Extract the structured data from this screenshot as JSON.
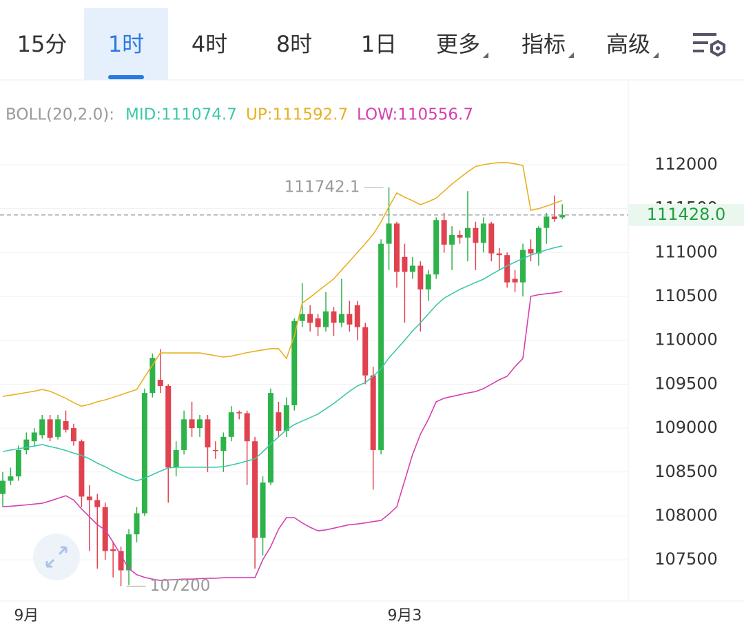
{
  "tabs": {
    "items": [
      "15分",
      "1时",
      "4时",
      "8时",
      "1日",
      "更多",
      "指标",
      "高级"
    ],
    "active": 1
  },
  "chart_data": {
    "type": "candlestick",
    "indicator": "BOLL(20,2.0):",
    "up_color": "#2db34a",
    "down_color": "#e0424f",
    "ylim": [
      107030,
      112950
    ],
    "yticks": [
      107500,
      108000,
      108500,
      109000,
      109500,
      110000,
      110500,
      111000,
      111500,
      112000
    ],
    "grid": true,
    "categories": [
      null,
      null,
      null,
      "9月",
      null,
      null,
      null,
      null,
      null,
      null,
      null,
      null,
      null,
      null,
      null,
      null,
      null,
      null,
      null,
      null,
      null,
      null,
      null,
      null,
      null,
      null,
      null,
      null,
      null,
      null,
      null,
      null,
      null,
      null,
      null,
      null,
      null,
      null,
      null,
      null,
      null,
      null,
      null,
      null,
      null,
      null,
      null,
      null,
      null,
      null,
      null,
      "9月3",
      null,
      null,
      null,
      null,
      null,
      null,
      null,
      null,
      null,
      null,
      null,
      null,
      null,
      null,
      null,
      null,
      null,
      null,
      null,
      null
    ],
    "ohlc": [
      [
        108250,
        108500,
        108100,
        108400
      ],
      [
        108400,
        108550,
        108350,
        108450
      ],
      [
        108450,
        108800,
        108400,
        108750
      ],
      [
        108750,
        108950,
        108700,
        108870
      ],
      [
        108850,
        109000,
        108800,
        108950
      ],
      [
        108920,
        109150,
        108880,
        109100
      ],
      [
        109100,
        109150,
        108850,
        108890
      ],
      [
        108900,
        109150,
        108870,
        109100
      ],
      [
        109080,
        109200,
        108950,
        108980
      ],
      [
        109000,
        109050,
        108800,
        108850
      ],
      [
        108850,
        108870,
        108100,
        108220
      ],
      [
        108220,
        108350,
        107600,
        108180
      ],
      [
        108180,
        108250,
        107400,
        108100
      ],
      [
        108100,
        108150,
        107500,
        107600
      ],
      [
        107620,
        107700,
        107300,
        107600
      ],
      [
        107600,
        107650,
        107200,
        107380
      ],
      [
        107380,
        107850,
        107211.5,
        107790
      ],
      [
        107790,
        108100,
        107700,
        108030
      ],
      [
        108030,
        109450,
        108000,
        109400
      ],
      [
        109400,
        109850,
        109350,
        109800
      ],
      [
        109550,
        109900,
        109400,
        109480
      ],
      [
        109480,
        109500,
        108150,
        108550
      ],
      [
        108550,
        108850,
        108450,
        108750
      ],
      [
        108750,
        109200,
        108700,
        109100
      ],
      [
        109100,
        109300,
        108900,
        109000
      ],
      [
        109000,
        109150,
        108900,
        109100
      ],
      [
        109100,
        109150,
        108500,
        108780
      ],
      [
        108750,
        108850,
        108650,
        108740
      ],
      [
        108740,
        108950,
        108500,
        108900
      ],
      [
        108900,
        109250,
        108850,
        109180
      ],
      [
        109180,
        109200,
        109100,
        109170
      ],
      [
        109170,
        109200,
        108350,
        108850
      ],
      [
        108850,
        108900,
        107400,
        107750
      ],
      [
        107750,
        108450,
        107550,
        108380
      ],
      [
        108380,
        109450,
        108350,
        109400
      ],
      [
        109180,
        109300,
        108900,
        108970
      ],
      [
        108970,
        109350,
        108900,
        109260
      ],
      [
        109260,
        110250,
        109200,
        110220
      ],
      [
        110220,
        110650,
        110150,
        110300
      ],
      [
        110300,
        110400,
        110100,
        110200
      ],
      [
        110250,
        110300,
        110050,
        110150
      ],
      [
        110150,
        110550,
        110100,
        110330
      ],
      [
        110330,
        110380,
        110050,
        110200
      ],
      [
        110200,
        110700,
        110150,
        110300
      ],
      [
        110300,
        110450,
        110100,
        110180
      ],
      [
        110400,
        110450,
        110000,
        110150
      ],
      [
        110150,
        110200,
        109500,
        109600
      ],
      [
        109600,
        109700,
        108300,
        108750
      ],
      [
        108750,
        111150,
        108700,
        111100
      ],
      [
        111100,
        111742.1,
        110800,
        111330
      ],
      [
        111330,
        111350,
        110600,
        110780
      ],
      [
        110950,
        111100,
        110200,
        110780
      ],
      [
        110780,
        110950,
        110700,
        110850
      ],
      [
        110850,
        110900,
        110100,
        110580
      ],
      [
        110580,
        110800,
        110450,
        110750
      ],
      [
        110750,
        111400,
        110700,
        111370
      ],
      [
        111370,
        111450,
        111000,
        111090
      ],
      [
        111090,
        111300,
        110800,
        111200
      ],
      [
        111200,
        111250,
        111100,
        111170
      ],
      [
        111170,
        111700,
        110900,
        111280
      ],
      [
        111280,
        111350,
        110800,
        111110
      ],
      [
        111110,
        111400,
        111000,
        111330
      ],
      [
        111330,
        111350,
        110900,
        110990
      ],
      [
        110990,
        111050,
        110800,
        110970
      ],
      [
        110970,
        111000,
        110600,
        110660
      ],
      [
        110700,
        110800,
        110550,
        110660
      ],
      [
        110660,
        111100,
        110500,
        111030
      ],
      [
        111040,
        111150,
        110900,
        110990
      ],
      [
        110990,
        111300,
        110850,
        111280
      ],
      [
        111280,
        111450,
        111100,
        111410
      ],
      [
        111410,
        111650,
        111350,
        111380
      ],
      [
        111400,
        111550,
        111380,
        111428
      ]
    ],
    "lines": [
      {
        "label": "MID:111074.7",
        "color": "#3cc8a8",
        "values": [
          108733,
          108750,
          108765,
          108780,
          108795,
          108812,
          108790,
          108770,
          108745,
          108715,
          108690,
          108650,
          108600,
          108560,
          108510,
          108470,
          108430,
          108400,
          108430,
          108470,
          108510,
          108545,
          108555,
          108555,
          108555,
          108555,
          108555,
          108555,
          108560,
          108580,
          108600,
          108625,
          108650,
          108730,
          108820,
          108900,
          108980,
          109040,
          109080,
          109120,
          109160,
          109220,
          109280,
          109350,
          109420,
          109480,
          109518,
          109590,
          109675,
          109800,
          109900,
          110000,
          110107,
          110200,
          110300,
          110400,
          110480,
          110530,
          110580,
          110620,
          110660,
          110696,
          110750,
          110800,
          110850,
          110890,
          110932,
          110970,
          111000,
          111030,
          111055,
          111074.7
        ]
      },
      {
        "label": "UP:111592.7",
        "color": "#e8b020",
        "values": [
          109361,
          109375,
          109390,
          109405,
          109420,
          109440,
          109420,
          109380,
          109340,
          109290,
          109250,
          109270,
          109300,
          109322,
          109350,
          109380,
          109410,
          109440,
          109580,
          109720,
          109856,
          109856,
          109856,
          109856,
          109856,
          109856,
          109840,
          109825,
          109810,
          109820,
          109840,
          109860,
          109875,
          109890,
          109905,
          109905,
          109793,
          110050,
          110422,
          110490,
          110560,
          110630,
          110700,
          110800,
          110900,
          111000,
          111100,
          111207,
          111350,
          111520,
          111678,
          111630,
          111590,
          111545,
          111580,
          111620,
          111700,
          111780,
          111850,
          111920,
          111980,
          112000,
          112015,
          112024,
          112024,
          112010,
          111992,
          111482,
          111500,
          111530,
          111560,
          111592.7
        ]
      },
      {
        "label": "LOW:110556.7",
        "color": "#d63fb0",
        "values": [
          108105,
          108110,
          108118,
          108125,
          108135,
          108144,
          108170,
          108200,
          108230,
          108180,
          108080,
          107990,
          107900,
          107840,
          107700,
          107550,
          107400,
          107330,
          107300,
          107280,
          107265,
          107270,
          107275,
          107280,
          107280,
          107285,
          107290,
          107290,
          107295,
          107296,
          107296,
          107296,
          107296,
          107500,
          107650,
          107850,
          107980,
          107980,
          107920,
          107870,
          107830,
          107840,
          107860,
          107880,
          107900,
          107908,
          107920,
          107935,
          107948,
          108020,
          108105,
          108400,
          108700,
          108930,
          109100,
          109300,
          109340,
          109360,
          109380,
          109400,
          109416,
          109450,
          109500,
          109550,
          109590,
          109700,
          109793,
          110500,
          110520,
          110530,
          110540,
          110556.7
        ]
      }
    ],
    "last_price": {
      "value": 111428,
      "label": "111428.0"
    }
  }
}
